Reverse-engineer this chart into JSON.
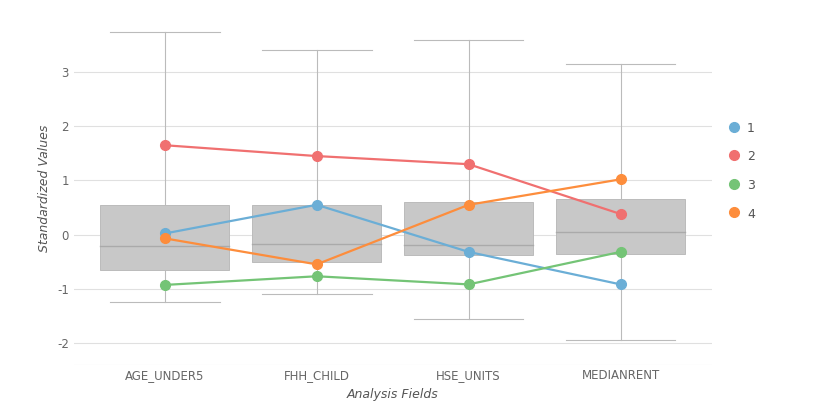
{
  "categories": [
    "AGE_UNDER5",
    "FHH_CHILD",
    "HSE_UNITS",
    "MEDIANRENT"
  ],
  "box_stats": {
    "AGE_UNDER5": {
      "whislo": -1.25,
      "q1": -0.65,
      "med": -0.22,
      "q3": 0.55,
      "whishi": 3.75
    },
    "FHH_CHILD": {
      "whislo": -1.1,
      "q1": -0.5,
      "med": -0.18,
      "q3": 0.55,
      "whishi": 3.4
    },
    "HSE_UNITS": {
      "whislo": -1.55,
      "q1": -0.38,
      "med": -0.2,
      "q3": 0.6,
      "whishi": 3.6
    },
    "MEDIANRENT": {
      "whislo": -1.95,
      "q1": -0.35,
      "med": 0.05,
      "q3": 0.65,
      "whishi": 3.15
    }
  },
  "lines": {
    "1": {
      "color": "#6baed6",
      "values": [
        0.02,
        0.55,
        -0.32,
        -0.92
      ]
    },
    "2": {
      "color": "#f07070",
      "values": [
        1.65,
        1.45,
        1.3,
        0.38
      ]
    },
    "3": {
      "color": "#74c476",
      "values": [
        -0.93,
        -0.77,
        -0.92,
        -0.32
      ]
    },
    "4": {
      "color": "#fd8d3c",
      "values": [
        -0.07,
        -0.55,
        0.55,
        1.02
      ]
    }
  },
  "xlabel": "Analysis Fields",
  "ylabel": "Standardized Values",
  "ylim": [
    -2.4,
    4.1
  ],
  "yticks": [
    -2,
    -1,
    0,
    1,
    2,
    3
  ],
  "box_color": "#c8c8c8",
  "box_edge_color": "#bbbbbb",
  "whisker_color": "#bbbbbb",
  "median_color": "#aaaaaa",
  "background_color": "#ffffff",
  "grid_color": "#e0e0e0",
  "axis_label_fontsize": 9,
  "tick_fontsize": 8.5,
  "legend_fontsize": 9,
  "line_width": 1.6,
  "marker_size": 7,
  "box_width": 0.85
}
